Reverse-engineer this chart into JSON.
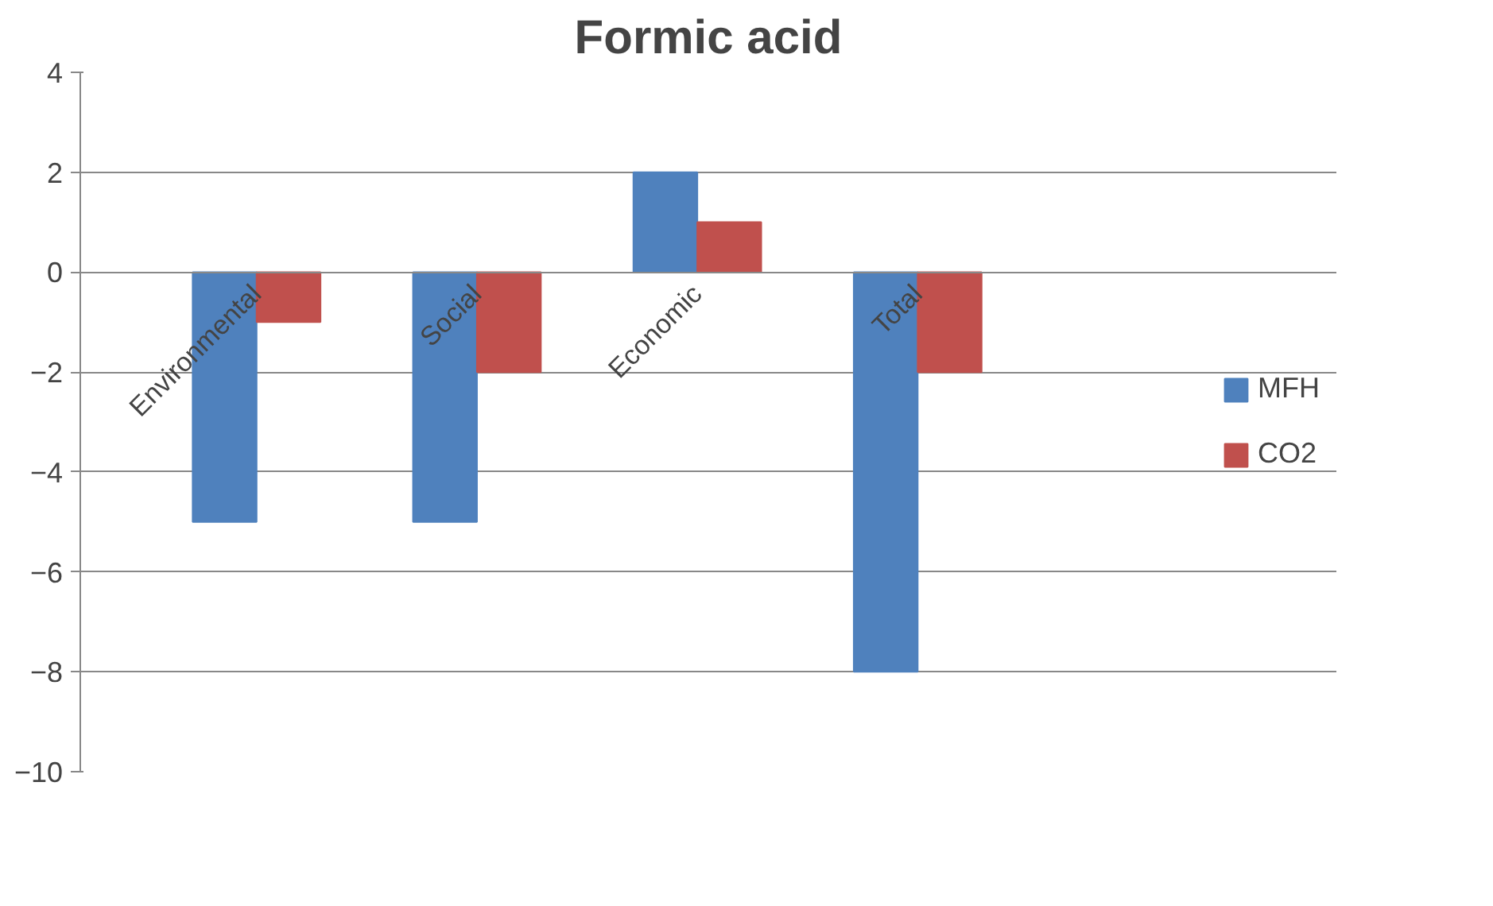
{
  "chart_data": {
    "type": "bar",
    "title": "Formic acid",
    "categories": [
      "Environmental",
      "Social",
      "Economic",
      "Total"
    ],
    "series": [
      {
        "name": "MFH",
        "color": "#4f81bd",
        "values": [
          -5,
          -5,
          2,
          -8
        ]
      },
      {
        "name": "CO2",
        "color": "#c0504d",
        "values": [
          -1,
          -2,
          1,
          -2
        ]
      }
    ],
    "ylim": [
      -10,
      4
    ],
    "yticks": [
      -10,
      -8,
      -6,
      -4,
      -2,
      0,
      2,
      4
    ],
    "grid": "y",
    "legend": "right"
  }
}
